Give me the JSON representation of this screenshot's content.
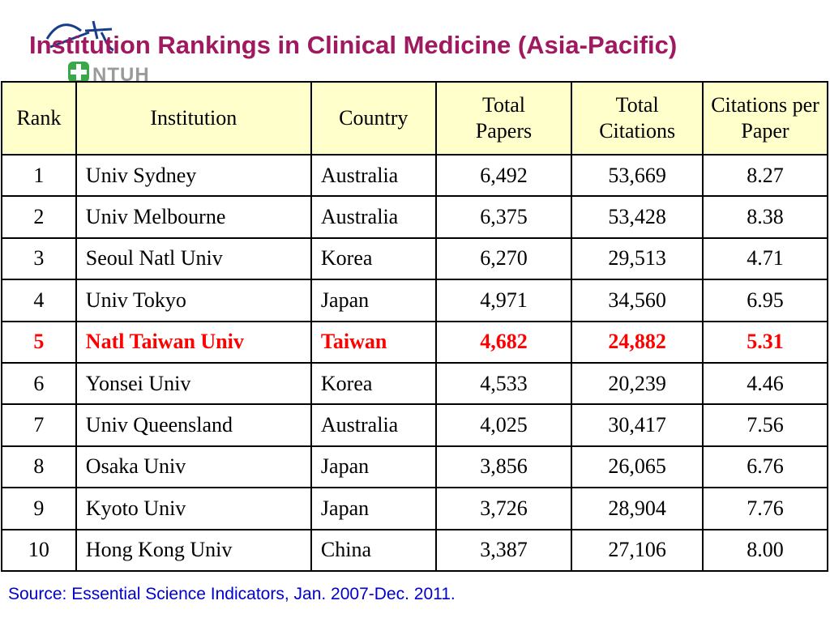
{
  "title": "Institution Rankings in Clinical Medicine (Asia-Pacific)",
  "logo": {
    "text": "NTUH"
  },
  "table": {
    "headers": [
      "Rank",
      "Institution",
      "Country",
      "Total Papers",
      "Total Citations",
      "Citations per Paper"
    ],
    "rows": [
      {
        "rank": "1",
        "institution": "Univ Sydney",
        "country": "Australia",
        "papers": "6,492",
        "citations": "53,669",
        "cpp": "8.27"
      },
      {
        "rank": "2",
        "institution": "Univ Melbourne",
        "country": "Australia",
        "papers": "6,375",
        "citations": "53,428",
        "cpp": "8.38"
      },
      {
        "rank": "3",
        "institution": "Seoul Natl Univ",
        "country": "Korea",
        "papers": "6,270",
        "citations": "29,513",
        "cpp": "4.71"
      },
      {
        "rank": "4",
        "institution": "Univ Tokyo",
        "country": "Japan",
        "papers": "4,971",
        "citations": "34,560",
        "cpp": "6.95"
      },
      {
        "rank": "5",
        "institution": "Natl Taiwan Univ",
        "country": "Taiwan",
        "papers": "4,682",
        "citations": "24,882",
        "cpp": "5.31"
      },
      {
        "rank": "6",
        "institution": "Yonsei Univ",
        "country": "Korea",
        "papers": "4,533",
        "citations": "20,239",
        "cpp": "4.46"
      },
      {
        "rank": "7",
        "institution": "Univ Queensland",
        "country": "Australia",
        "papers": "4,025",
        "citations": "30,417",
        "cpp": "7.56"
      },
      {
        "rank": "8",
        "institution": "Osaka Univ",
        "country": "Japan",
        "papers": "3,856",
        "citations": "26,065",
        "cpp": "6.76"
      },
      {
        "rank": "9",
        "institution": "Kyoto Univ",
        "country": "Japan",
        "papers": "3,726",
        "citations": "28,904",
        "cpp": "7.76"
      },
      {
        "rank": "10",
        "institution": "Hong Kong Univ",
        "country": "China",
        "papers": "3,387",
        "citations": "27,106",
        "cpp": "8.00"
      }
    ],
    "highlight_rank": "5"
  },
  "source": "Source: Essential Science Indicators, Jan. 2007-Dec. 2011.",
  "colors": {
    "title": "#a0185f",
    "header_bg": "#ffffcc",
    "highlight": "#ff0000",
    "source": "#0000cc"
  }
}
